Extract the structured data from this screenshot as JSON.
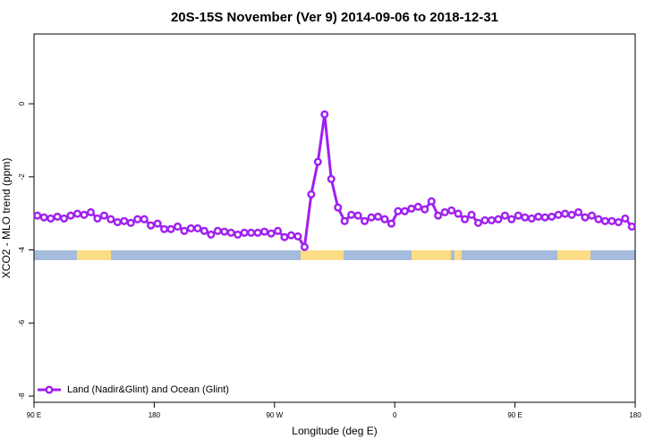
{
  "chart_data": {
    "type": "line",
    "title": "20S-15S November (Ver 9)   2014-09-06 to 2018-12-31",
    "xlabel": "Longitude (deg E)",
    "ylabel": "XCO2 - MLO trend (ppm)",
    "xlim": [
      90,
      540
    ],
    "ylim": [
      -8.17,
      1.91
    ],
    "xticks": [
      {
        "value": 90,
        "label": "90 E"
      },
      {
        "value": 180,
        "label": "180"
      },
      {
        "value": 270,
        "label": "90 W"
      },
      {
        "value": 360,
        "label": "0"
      },
      {
        "value": 450,
        "label": "90 E"
      },
      {
        "value": 540,
        "label": "180"
      }
    ],
    "yticks": [
      -8,
      -6,
      -4,
      -2,
      0
    ],
    "legend": "bottomleft",
    "x": [
      92.5,
      97.5,
      102.5,
      107.5,
      112.5,
      117.5,
      122.5,
      127.5,
      132.5,
      137.5,
      142.5,
      147.5,
      152.5,
      157.5,
      162.5,
      167.5,
      172.5,
      177.5,
      182.5,
      187.5,
      192.5,
      197.5,
      202.5,
      207.5,
      212.5,
      217.5,
      222.5,
      227.5,
      232.5,
      237.5,
      242.5,
      247.5,
      252.5,
      257.5,
      262.5,
      267.5,
      272.5,
      277.5,
      282.5,
      287.5,
      292.5,
      297.5,
      302.5,
      307.5,
      312.5,
      317.5,
      322.5,
      327.5,
      332.5,
      337.5,
      342.5,
      347.5,
      352.5,
      357.5,
      362.5,
      367.5,
      372.5,
      377.5,
      382.5,
      387.5,
      392.5,
      397.5,
      402.5,
      407.5,
      412.5,
      417.5,
      422.5,
      427.5,
      432.5,
      437.5,
      442.5,
      447.5,
      452.5,
      457.5,
      462.5,
      467.5,
      472.5,
      477.5,
      482.5,
      487.5,
      492.5,
      497.5,
      502.5,
      507.5,
      512.5,
      517.5,
      522.5,
      527.5,
      532.5,
      537.5
    ],
    "series": [
      {
        "name": "Land (Nadir&Glint) and Ocean (Glint)",
        "color": "#a020f0",
        "values": [
          -3.06,
          -3.11,
          -3.14,
          -3.09,
          -3.14,
          -3.06,
          -3.01,
          -3.04,
          -2.97,
          -3.14,
          -3.06,
          -3.16,
          -3.24,
          -3.21,
          -3.26,
          -3.16,
          -3.16,
          -3.33,
          -3.28,
          -3.43,
          -3.43,
          -3.36,
          -3.48,
          -3.41,
          -3.41,
          -3.48,
          -3.58,
          -3.48,
          -3.5,
          -3.53,
          -3.58,
          -3.53,
          -3.53,
          -3.53,
          -3.5,
          -3.55,
          -3.48,
          -3.65,
          -3.6,
          -3.63,
          -3.92,
          -2.48,
          -1.59,
          -0.29,
          -2.06,
          -2.84,
          -3.21,
          -3.04,
          -3.06,
          -3.21,
          -3.11,
          -3.09,
          -3.16,
          -3.28,
          -2.94,
          -2.94,
          -2.87,
          -2.82,
          -2.89,
          -2.67,
          -3.06,
          -2.97,
          -2.92,
          -3.01,
          -3.16,
          -3.04,
          -3.26,
          -3.19,
          -3.19,
          -3.16,
          -3.06,
          -3.16,
          -3.06,
          -3.11,
          -3.14,
          -3.09,
          -3.11,
          -3.09,
          -3.04,
          -3.01,
          -3.04,
          -2.97,
          -3.11,
          -3.06,
          -3.16,
          -3.21,
          -3.21,
          -3.24,
          -3.14,
          -3.36
        ]
      }
    ]
  }
}
